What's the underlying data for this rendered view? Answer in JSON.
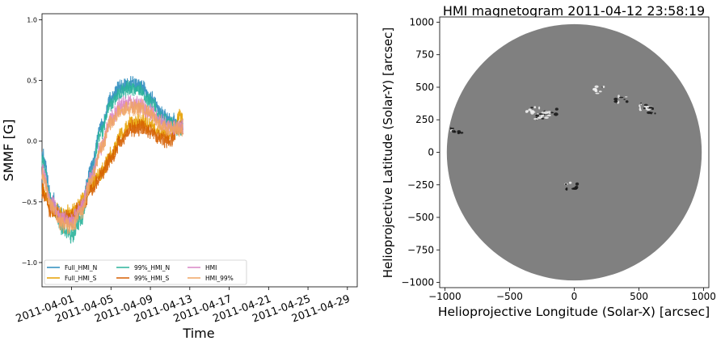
{
  "chart_data": [
    {
      "type": "line",
      "xlabel": "Time",
      "ylabel": "SMMF [G]",
      "ylim": [
        -1.2,
        1.05
      ],
      "yticks": [
        -1.0,
        -0.5,
        0.0,
        0.5,
        1.0
      ],
      "ytick_labels": [
        "−1.0",
        "−0.5",
        "0.0",
        "0.5",
        "1.0"
      ],
      "xlim": [
        "2011-03-29",
        "2011-04-30"
      ],
      "xticks": [
        "2011-04-01",
        "2011-04-05",
        "2011-04-09",
        "2011-04-13",
        "2011-04-17",
        "2011-04-21",
        "2011-04-25",
        "2011-04-29"
      ],
      "grid": false,
      "legend_position": "lower-left",
      "x": [
        "2011-03-29",
        "2011-03-30",
        "2011-03-31",
        "2011-04-01",
        "2011-04-02",
        "2011-04-03",
        "2011-04-04",
        "2011-04-05",
        "2011-04-06",
        "2011-04-07",
        "2011-04-08",
        "2011-04-09",
        "2011-04-10",
        "2011-04-11",
        "2011-04-12"
      ],
      "series": [
        {
          "name": "Full_HMI_N",
          "color": "#2b8cbe",
          "values": [
            -0.1,
            -0.48,
            -0.62,
            -0.66,
            -0.55,
            -0.22,
            0.12,
            0.36,
            0.44,
            0.48,
            0.46,
            0.36,
            0.24,
            0.18,
            0.12
          ]
        },
        {
          "name": "Full_HMI_S",
          "color": "#e69f00",
          "values": [
            -0.4,
            -0.56,
            -0.6,
            -0.58,
            -0.5,
            -0.36,
            -0.26,
            -0.12,
            0.05,
            0.15,
            0.16,
            0.12,
            0.06,
            0.04,
            0.2
          ]
        },
        {
          "name": "99%_HMI_N",
          "color": "#2ab29a",
          "values": [
            -0.15,
            -0.52,
            -0.72,
            -0.78,
            -0.64,
            -0.28,
            0.08,
            0.32,
            0.4,
            0.44,
            0.42,
            0.32,
            0.2,
            0.14,
            0.1
          ]
        },
        {
          "name": "99%_HMI_S",
          "color": "#d55e00",
          "values": [
            -0.42,
            -0.58,
            -0.64,
            -0.62,
            -0.54,
            -0.4,
            -0.28,
            -0.14,
            0.0,
            0.1,
            0.12,
            0.08,
            0.02,
            0.0,
            0.1
          ]
        },
        {
          "name": "HMI",
          "color": "#d986c6",
          "values": [
            -0.25,
            -0.52,
            -0.64,
            -0.65,
            -0.55,
            -0.3,
            -0.05,
            0.18,
            0.3,
            0.32,
            0.3,
            0.24,
            0.16,
            0.12,
            0.12
          ]
        },
        {
          "name": "HMI_99%",
          "color": "#f0a463",
          "values": [
            -0.28,
            -0.55,
            -0.68,
            -0.7,
            -0.58,
            -0.32,
            -0.06,
            0.16,
            0.26,
            0.28,
            0.27,
            0.22,
            0.14,
            0.1,
            0.1
          ]
        }
      ]
    },
    {
      "type": "heatmap",
      "title": "HMI magnetogram 2011-04-12 23:58:19",
      "xlabel": "Helioprojective Longitude (Solar-X) [arcsec]",
      "ylabel": "Helioprojective Latitude (Solar-Y) [arcsec]",
      "xlim": [
        -1040,
        1040
      ],
      "ylim": [
        -1040,
        1040
      ],
      "xticks": [
        -1000,
        -500,
        0,
        500,
        1000
      ],
      "xtick_labels": [
        "−1000",
        "−500",
        "0",
        "500",
        "1000"
      ],
      "yticks": [
        -1000,
        -750,
        -500,
        -250,
        0,
        250,
        500,
        750,
        1000
      ],
      "ytick_labels": [
        "−1000",
        "−750",
        "−500",
        "−250",
        "0",
        "250",
        "500",
        "750",
        "1000"
      ],
      "disk_radius_arcsec": 985,
      "disk_color": "#808080",
      "background_color": "#ffffff",
      "features": [
        {
          "x": -320,
          "y": 330,
          "polarity": "positive"
        },
        {
          "x": -180,
          "y": 310,
          "polarity": "negative"
        },
        {
          "x": -250,
          "y": 280,
          "polarity": "mixed"
        },
        {
          "x": 200,
          "y": 480,
          "polarity": "positive"
        },
        {
          "x": 360,
          "y": 410,
          "polarity": "negative"
        },
        {
          "x": 550,
          "y": 350,
          "polarity": "mixed"
        },
        {
          "x": 580,
          "y": 320,
          "polarity": "negative"
        },
        {
          "x": -20,
          "y": -260,
          "polarity": "negative"
        },
        {
          "x": -920,
          "y": 170,
          "polarity": "negative"
        }
      ]
    }
  ]
}
